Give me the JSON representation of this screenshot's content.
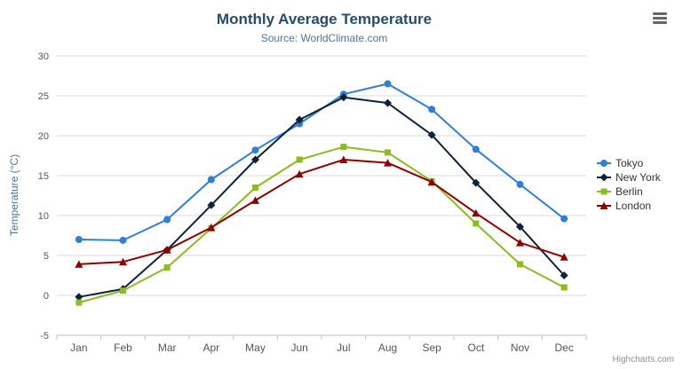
{
  "header": {
    "title": "Monthly Average Temperature",
    "subtitle": "Source: WorldClimate.com"
  },
  "credits": "Highcharts.com",
  "export_menu": {
    "icon": "hamburger-icon"
  },
  "chart_data": {
    "type": "line",
    "title": "Monthly Average Temperature",
    "subtitle": "Source: WorldClimate.com",
    "xlabel": "",
    "ylabel": "Temperature (°C)",
    "ylim": [
      -5,
      30
    ],
    "ytick_step": 5,
    "grid": true,
    "legend_position": "right",
    "categories": [
      "Jan",
      "Feb",
      "Mar",
      "Apr",
      "May",
      "Jun",
      "Jul",
      "Aug",
      "Sep",
      "Oct",
      "Nov",
      "Dec"
    ],
    "series": [
      {
        "name": "Tokyo",
        "color": "#2f7ed8",
        "marker": "circle",
        "values": [
          7.0,
          6.9,
          9.5,
          14.5,
          18.2,
          21.5,
          25.2,
          26.5,
          23.3,
          18.3,
          13.9,
          9.6
        ]
      },
      {
        "name": "New York",
        "color": "#0d233a",
        "marker": "diamond",
        "values": [
          -0.2,
          0.8,
          5.7,
          11.3,
          17.0,
          22.0,
          24.8,
          24.1,
          20.1,
          14.1,
          8.6,
          2.5
        ]
      },
      {
        "name": "Berlin",
        "color": "#8bbc21",
        "marker": "square",
        "values": [
          -0.9,
          0.6,
          3.5,
          8.4,
          13.5,
          17.0,
          18.6,
          17.9,
          14.3,
          9.0,
          3.9,
          1.0
        ]
      },
      {
        "name": "London",
        "color": "#910000",
        "marker": "triangle",
        "values": [
          3.9,
          4.2,
          5.7,
          8.5,
          11.9,
          15.2,
          17.0,
          16.6,
          14.2,
          10.3,
          6.6,
          4.8
        ]
      }
    ],
    "colors": {
      "grid_line": "#d8d8d8",
      "axis_line": "#c0c0c0",
      "tick_label": "#555555",
      "legend_text": "#333333",
      "title_text": "#274b6d",
      "subtitle_text": "#4d759e"
    }
  }
}
